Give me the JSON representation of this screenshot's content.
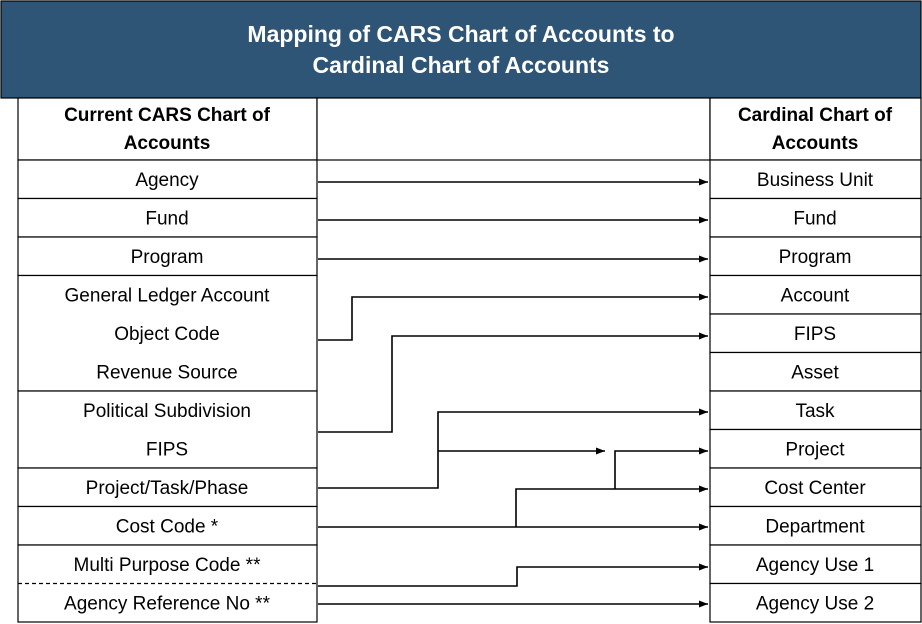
{
  "title": [
    "Mapping of CARS Chart of Accounts to",
    "Cardinal Chart of Accounts"
  ],
  "left_header": [
    "Current CARS Chart of",
    "Accounts"
  ],
  "right_header": [
    "Cardinal Chart of",
    "Accounts"
  ],
  "left_items": [
    "Agency",
    "Fund",
    "Program",
    "General Ledger Account",
    "Object Code",
    "Revenue Source",
    "Political Subdivision",
    "FIPS",
    "Project/Task/Phase",
    "Cost Code *",
    "Multi Purpose Code **",
    "Agency Reference No **"
  ],
  "right_items": [
    "Business Unit",
    "Fund",
    "Program",
    "Account",
    "FIPS",
    "Asset",
    "Task",
    "Project",
    "Cost Center",
    "Department",
    "Agency Use 1",
    "Agency Use 2"
  ]
}
